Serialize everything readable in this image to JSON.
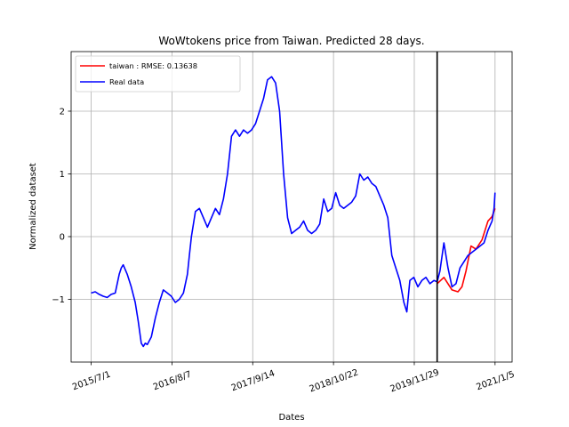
{
  "chart_data": {
    "type": "line",
    "title": "WoWtokens price from Taiwan. Predicted 28 days.",
    "xlabel": "Dates",
    "ylabel": "Normalized dataset",
    "x_ticks": [
      "2015/7/1",
      "2016/8/7",
      "2017/9/14",
      "2018/10/22",
      "2019/11/29",
      "2021/1/5"
    ],
    "x_tick_values": [
      0,
      403,
      806,
      1209,
      1612,
      2015
    ],
    "xlim": [
      -100,
      2100
    ],
    "y_ticks": [
      "−1",
      "0",
      "1",
      "2"
    ],
    "y_tick_values": [
      -1,
      0,
      1,
      2
    ],
    "ylim": [
      -2.0,
      2.95
    ],
    "grid": true,
    "legend_position": "upper-left",
    "forecast_start_line": 1726,
    "colors": {
      "prediction": "#ff0000",
      "real": "#0000ff",
      "vline": "#000000"
    },
    "series": [
      {
        "name": "taiwan : RMSE: 0.13638",
        "color": "#ff0000",
        "x": [
          1726,
          1760,
          1800,
          1830,
          1850,
          1870,
          1895,
          1920,
          1950,
          1980,
          2000,
          2015
        ],
        "y": [
          -0.75,
          -0.65,
          -0.85,
          -0.88,
          -0.8,
          -0.55,
          -0.15,
          -0.2,
          -0.05,
          0.25,
          0.32,
          0.45
        ]
      },
      {
        "name": "Real data",
        "color": "#0000ff",
        "x": [
          0,
          20,
          40,
          60,
          80,
          100,
          120,
          140,
          150,
          160,
          180,
          200,
          220,
          235,
          250,
          260,
          270,
          280,
          300,
          320,
          340,
          360,
          380,
          400,
          420,
          440,
          460,
          480,
          490,
          500,
          520,
          540,
          560,
          580,
          600,
          620,
          640,
          660,
          680,
          700,
          720,
          740,
          760,
          780,
          800,
          820,
          840,
          860,
          880,
          900,
          920,
          940,
          960,
          980,
          1000,
          1020,
          1040,
          1060,
          1080,
          1100,
          1120,
          1140,
          1160,
          1180,
          1200,
          1220,
          1240,
          1260,
          1280,
          1300,
          1320,
          1340,
          1360,
          1380,
          1400,
          1420,
          1440,
          1460,
          1480,
          1500,
          1520,
          1540,
          1560,
          1575,
          1590,
          1610,
          1630,
          1650,
          1670,
          1690,
          1710,
          1726,
          1740,
          1760,
          1780,
          1800,
          1820,
          1840,
          1860,
          1880,
          1900,
          1920,
          1940,
          1960,
          1980,
          2000,
          2010,
          2015
        ],
        "y": [
          -0.9,
          -0.88,
          -0.92,
          -0.95,
          -0.97,
          -0.92,
          -0.9,
          -0.6,
          -0.5,
          -0.45,
          -0.6,
          -0.8,
          -1.05,
          -1.35,
          -1.7,
          -1.75,
          -1.7,
          -1.72,
          -1.6,
          -1.3,
          -1.05,
          -0.85,
          -0.9,
          -0.95,
          -1.05,
          -1.0,
          -0.9,
          -0.6,
          -0.3,
          0.0,
          0.4,
          0.45,
          0.3,
          0.15,
          0.3,
          0.45,
          0.35,
          0.6,
          1.0,
          1.6,
          1.7,
          1.6,
          1.7,
          1.65,
          1.7,
          1.8,
          2.0,
          2.2,
          2.5,
          2.55,
          2.45,
          2.0,
          1.0,
          0.3,
          0.05,
          0.1,
          0.15,
          0.25,
          0.1,
          0.05,
          0.1,
          0.2,
          0.6,
          0.4,
          0.45,
          0.7,
          0.5,
          0.45,
          0.5,
          0.55,
          0.65,
          1.0,
          0.9,
          0.95,
          0.85,
          0.8,
          0.65,
          0.5,
          0.3,
          -0.3,
          -0.5,
          -0.7,
          -1.05,
          -1.2,
          -0.7,
          -0.65,
          -0.8,
          -0.7,
          -0.65,
          -0.75,
          -0.7,
          -0.72,
          -0.55,
          -0.1,
          -0.5,
          -0.8,
          -0.75,
          -0.5,
          -0.4,
          -0.3,
          -0.25,
          -0.2,
          -0.15,
          -0.1,
          0.1,
          0.25,
          0.45,
          0.7
        ]
      }
    ]
  }
}
